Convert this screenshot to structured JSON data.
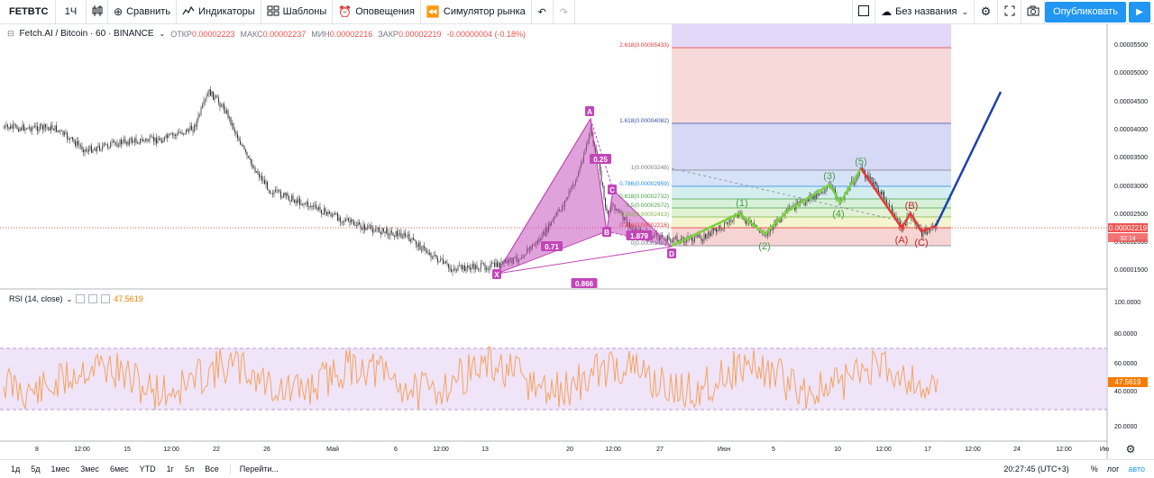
{
  "toolbar": {
    "symbol": "FETBTC",
    "interval": "1Ч",
    "compare": "Сравнить",
    "indicators": "Индикаторы",
    "templates": "Шаблоны",
    "alerts": "Оповещения",
    "replay": "Симулятор рынка",
    "layout_name": "Без названия",
    "publish": "Опубликовать"
  },
  "legend": {
    "title": "Fetch.AI / Bitcoin · 60 · BINANCE",
    "open_label": "ОТКР",
    "open": "0.00002223",
    "high_label": "МАКС",
    "high": "0.00002237",
    "low_label": "МИН",
    "low": "0.00002216",
    "close_label": "ЗАКР",
    "close": "0.00002219",
    "change": "-0.00000004 (-0.18%)"
  },
  "rsi": {
    "label": "RSI (14, close)",
    "value": "47.5619"
  },
  "price_axis": [
    "0.00005500",
    "0.00005000",
    "0.00004500",
    "0.00004000",
    "0.00003500",
    "0.00003000",
    "0.00002500",
    "0.00002000",
    "0.00001500"
  ],
  "price_tag": {
    "value": "0.00002219",
    "countdown": "32:14"
  },
  "rsi_axis": [
    "100.0000",
    "80.0000",
    "60.0000",
    "40.0000",
    "20.0000"
  ],
  "rsi_tag": "47.5619",
  "time_axis": [
    "8",
    "12:00",
    "15",
    "12:00",
    "22",
    "26",
    "Май",
    "6",
    "12:00",
    "13",
    "20",
    "12:00",
    "27",
    "Июн",
    "5",
    "10",
    "12:00",
    "17",
    "12:00",
    "24",
    "12:00",
    "Ию"
  ],
  "fib_levels": [
    {
      "label": "2.618(0.00005433)",
      "color": "#e53935"
    },
    {
      "label": "1.618(0.00004082)",
      "color": "#3949ab"
    },
    {
      "label": "1(0.00003248)",
      "color": "#787b86"
    },
    {
      "label": "0.786(0.00002959)",
      "color": "#1e88e5"
    },
    {
      "label": "0.618(0.00002732)",
      "color": "#43a047"
    },
    {
      "label": "0.5(0.00002572)",
      "color": "#43a047"
    },
    {
      "label": "0.382(0.00002413)",
      "color": "#7cb342"
    },
    {
      "label": "0.236(0.00002216)",
      "color": "#e53935"
    },
    {
      "label": "0(0.00001897)",
      "color": "#787b86"
    }
  ],
  "pattern_labels": [
    "X",
    "A",
    "B",
    "C",
    "D"
  ],
  "pattern_ratios": [
    "0.25",
    "0.71",
    "0.866",
    "1.879"
  ],
  "wave_labels": [
    "(1)",
    "(2)",
    "(3)",
    "(4)",
    "(5)"
  ],
  "correction_labels": [
    "(A)",
    "(B)",
    "(C)"
  ],
  "bottom": {
    "ranges": [
      "1д",
      "5д",
      "1мес",
      "3мес",
      "6мес",
      "YTD",
      "1г",
      "5л",
      "Все"
    ],
    "goto": "Перейти...",
    "clock": "20:27:45 (UTC+3)",
    "percent": "%",
    "log": "лог",
    "auto": "авто"
  },
  "colors": {
    "up": "#26a69a",
    "down": "#ef5350",
    "pattern": "#c246b8",
    "wave_up": "#76d33a",
    "wave_down": "#e53935",
    "projection": "#1e40af",
    "rsi_line": "#f4a460",
    "rsi_band": "#e9d8f7"
  }
}
